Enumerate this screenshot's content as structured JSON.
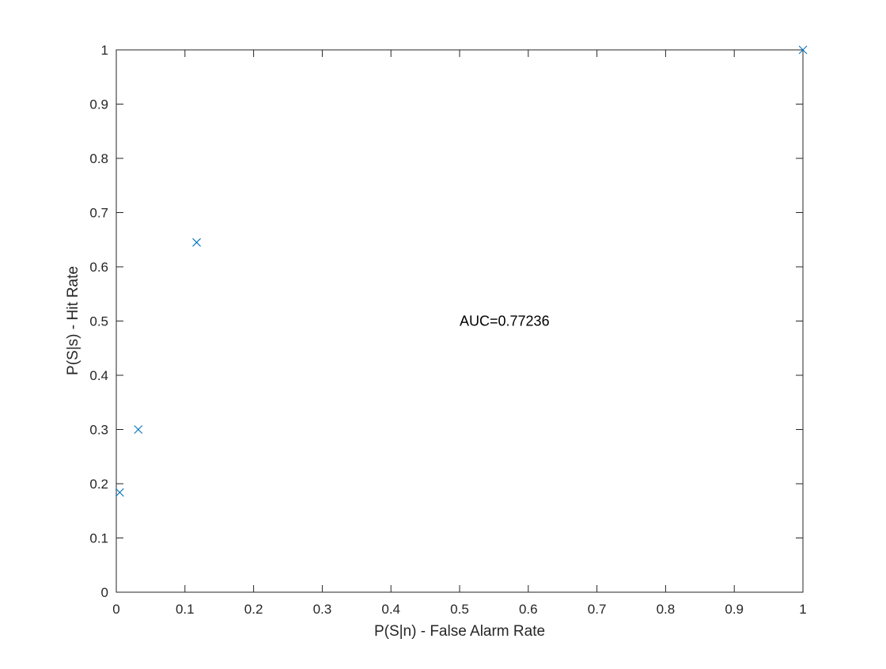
{
  "chart_data": {
    "type": "scatter",
    "title": "",
    "xlabel": "P(S|n) - False Alarm Rate",
    "ylabel": "P(S|s) - Hit Rate",
    "xlim": [
      0,
      1
    ],
    "ylim": [
      0,
      1
    ],
    "grid": false,
    "xticks": [
      0,
      0.1,
      0.2,
      0.3,
      0.4,
      0.5,
      0.6,
      0.7,
      0.8,
      0.9,
      1
    ],
    "yticks": [
      0,
      0.1,
      0.2,
      0.3,
      0.4,
      0.5,
      0.6,
      0.7,
      0.8,
      0.9,
      1
    ],
    "xtick_labels": [
      "0",
      "0.1",
      "0.2",
      "0.3",
      "0.4",
      "0.5",
      "0.6",
      "0.7",
      "0.8",
      "0.9",
      "1"
    ],
    "ytick_labels": [
      "0",
      "0.1",
      "0.2",
      "0.3",
      "0.4",
      "0.5",
      "0.6",
      "0.7",
      "0.8",
      "0.9",
      "1"
    ],
    "series": [
      {
        "name": "ROC points",
        "marker": "x",
        "color": "#0072BD",
        "x": [
          0.005,
          0.032,
          0.117,
          1.0
        ],
        "y": [
          0.184,
          0.3,
          0.645,
          1.0
        ]
      }
    ],
    "annotations": [
      {
        "text": "AUC=0.77236",
        "x": 0.5,
        "y": 0.5
      }
    ]
  }
}
